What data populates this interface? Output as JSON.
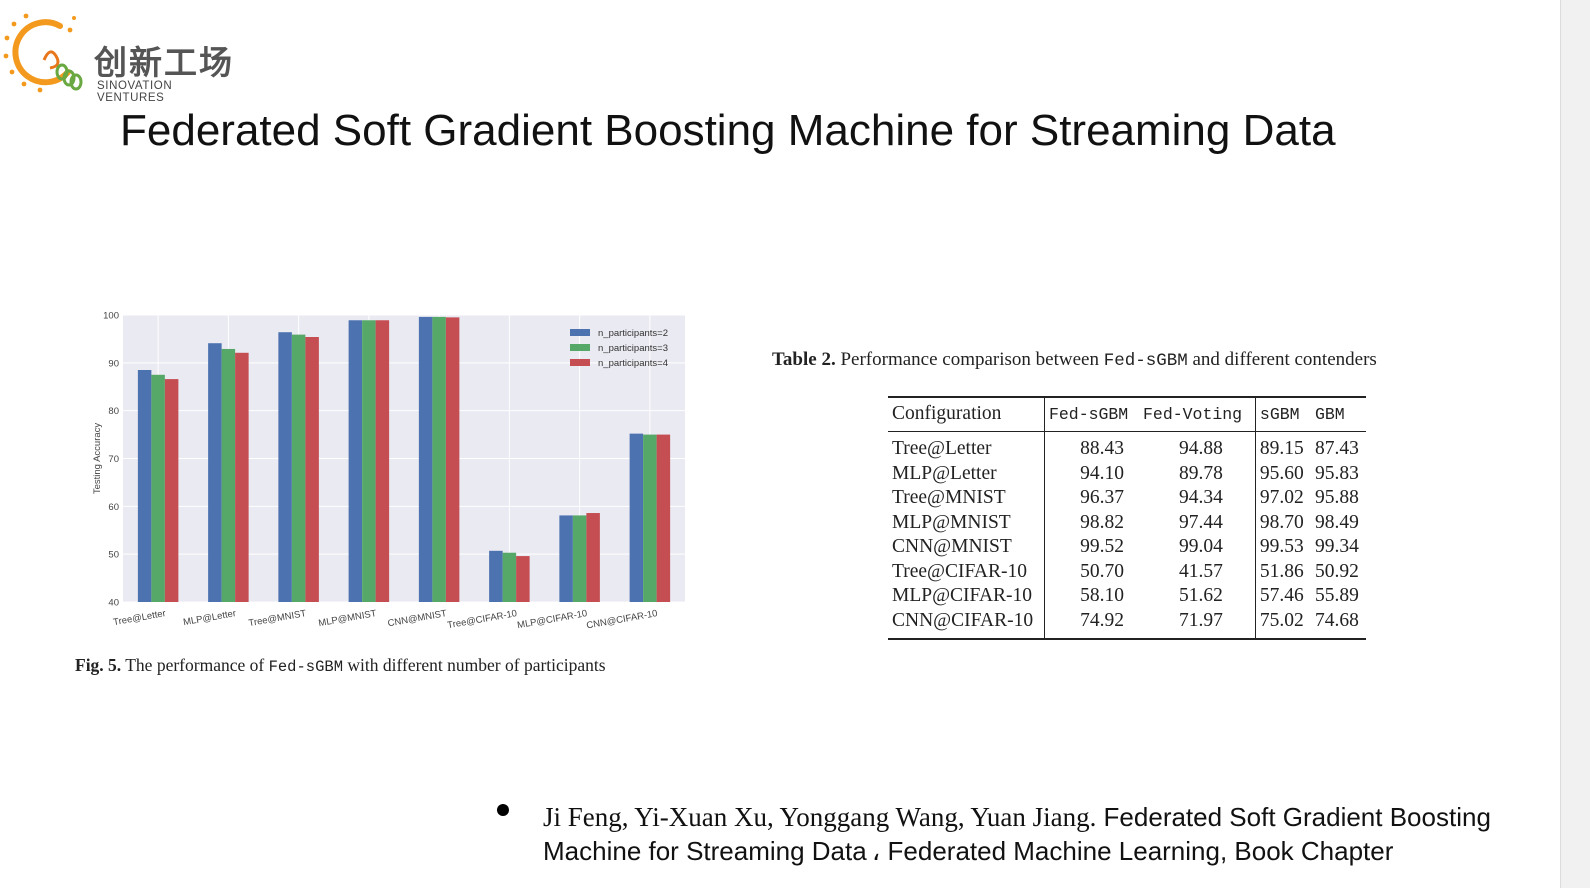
{
  "logo": {
    "name_cn": "创新工场",
    "name_en": "SINOVATION  VENTURES"
  },
  "slide": {
    "title": "Federated Soft Gradient Boosting Machine for Streaming Data"
  },
  "figure": {
    "label": "Fig. 5.",
    "caption_pre": " The performance of ",
    "caption_method": "Fed-sGBM",
    "caption_post": " with different number of participants"
  },
  "chart_data": {
    "type": "bar",
    "title": "",
    "xlabel": "",
    "ylabel": "Testing Accuracy",
    "ylim": [
      40,
      100
    ],
    "yticks": [
      40,
      50,
      60,
      70,
      80,
      90,
      100
    ],
    "grid": true,
    "legend_position": "top-right",
    "categories": [
      "Tree@Letter",
      "MLP@Letter",
      "Tree@MNIST",
      "MLP@MNIST",
      "CNN@MNIST",
      "Tree@CIFAR-10",
      "MLP@CIFAR-10",
      "CNN@CIFAR-10"
    ],
    "series": [
      {
        "name": "n_participants=2",
        "color": "#4c72b0",
        "values": [
          88.5,
          94.1,
          96.4,
          98.9,
          99.6,
          50.7,
          58.1,
          75.2
        ]
      },
      {
        "name": "n_participants=3",
        "color": "#55a868",
        "values": [
          87.5,
          92.9,
          95.9,
          98.9,
          99.6,
          50.3,
          58.1,
          75.0
        ]
      },
      {
        "name": "n_participants=4",
        "color": "#c44e52",
        "values": [
          86.6,
          92.1,
          95.4,
          98.9,
          99.5,
          49.6,
          58.6,
          75.0
        ]
      }
    ]
  },
  "table": {
    "label": "Table 2.",
    "caption_pre": " Performance comparison between ",
    "caption_method": "Fed-sGBM",
    "caption_post": " and different contenders",
    "headers": [
      "Configuration",
      "Fed-sGBM",
      "Fed-Voting",
      "sGBM",
      "GBM"
    ],
    "rows": [
      [
        "Tree@Letter",
        "88.43",
        "94.88",
        "89.15",
        "87.43"
      ],
      [
        "MLP@Letter",
        "94.10",
        "89.78",
        "95.60",
        "95.83"
      ],
      [
        "Tree@MNIST",
        "96.37",
        "94.34",
        "97.02",
        "95.88"
      ],
      [
        "MLP@MNIST",
        "98.82",
        "97.44",
        "98.70",
        "98.49"
      ],
      [
        "CNN@MNIST",
        "99.52",
        "99.04",
        "99.53",
        "99.34"
      ],
      [
        "Tree@CIFAR-10",
        "50.70",
        "41.57",
        "51.86",
        "50.92"
      ],
      [
        "MLP@CIFAR-10",
        "58.10",
        "51.62",
        "57.46",
        "55.89"
      ],
      [
        "CNN@CIFAR-10",
        "74.92",
        "71.97",
        "75.02",
        "74.68"
      ]
    ]
  },
  "reference": {
    "authors": "Ji Feng, Yi-Xuan Xu, Yonggang Wang, Yuan Jiang.",
    "text": " Federated Soft Gradient Boosting Machine for Streaming Data ، Federated Machine Learning, Book Chapter"
  }
}
